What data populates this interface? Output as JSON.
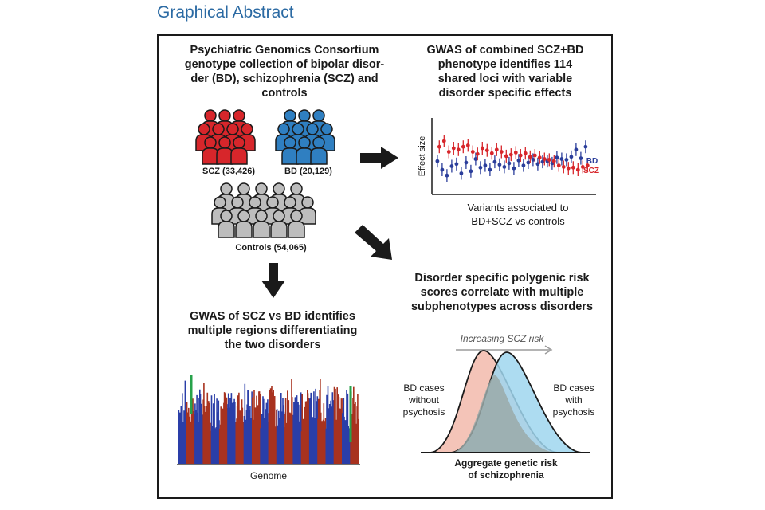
{
  "header": {
    "title": "Graphical Abstract"
  },
  "box_consortium": "Psychiatric Genomics Consortium genotype collection of bipolar disor-der (BD), schizophrenia (SCZ) and controls",
  "line1": "Psychiatric Genomics Consortium",
  "line2": "genotype collection of bipolar disor-",
  "line3": "der (BD), schizophrenia (SCZ) and",
  "line4": "controls",
  "groups": {
    "scz": {
      "label": "SCZ (33,426)",
      "color": "#d7262b"
    },
    "bd": {
      "label": "BD (20,129)",
      "color": "#2f7fc1"
    },
    "controls": {
      "label": "Controls (54,065)",
      "color": "#bdbdbd"
    }
  },
  "gwas_combined": {
    "l1": "GWAS of combined SCZ+BD",
    "l2": "phenotype identifies 114",
    "l3": "shared loci with variable",
    "l4": "disorder specific effects",
    "ylabel": "Effect size",
    "legend_bd": "BD",
    "legend_scz": "SCZ",
    "xlabel1": "Variants associated to",
    "xlabel2": "BD+SCZ vs controls",
    "bd_color": "#2b3e9b",
    "scz_color": "#d7262b"
  },
  "gwas_scz_bd": {
    "l1": "GWAS of SCZ vs BD identifies",
    "l2": "multiple regions differentiating",
    "l3": "the two disorders",
    "xlabel": "Genome"
  },
  "prs": {
    "l1": "Disorder specific polygenic risk",
    "l2": "scores correlate with multiple",
    "l3": "subphenotypes across disorders",
    "arrow_label": "Increasing SCZ risk",
    "left1": "BD cases",
    "left2": "without",
    "left3": "psychosis",
    "right1": "BD cases",
    "right2": "with",
    "right3": "psychosis",
    "x1": "Aggregate genetic risk",
    "x2": "of schizophrenia",
    "left_color": "#f4c4b8",
    "right_color": "#9fd6ee"
  },
  "chart_data": {
    "type": "scatter",
    "ylabel": "Effect size",
    "xlabel": "Variants associated to BD+SCZ vs controls",
    "series": [
      {
        "name": "BD",
        "values": [
          0.42,
          0.3,
          0.22,
          0.35,
          0.38,
          0.25,
          0.4,
          0.28,
          0.45,
          0.33,
          0.36,
          0.3,
          0.41,
          0.37,
          0.34,
          0.39,
          0.32,
          0.43,
          0.36,
          0.4,
          0.44,
          0.38,
          0.41,
          0.42,
          0.39,
          0.47,
          0.45,
          0.44,
          0.48,
          0.58,
          0.46,
          0.62
        ]
      },
      {
        "name": "SCZ",
        "values": [
          0.62,
          0.7,
          0.55,
          0.6,
          0.58,
          0.62,
          0.64,
          0.55,
          0.52,
          0.6,
          0.57,
          0.53,
          0.58,
          0.55,
          0.49,
          0.51,
          0.54,
          0.5,
          0.53,
          0.48,
          0.5,
          0.47,
          0.45,
          0.44,
          0.42,
          0.36,
          0.34,
          0.32,
          0.33,
          0.3,
          0.34,
          0.36
        ]
      }
    ]
  }
}
